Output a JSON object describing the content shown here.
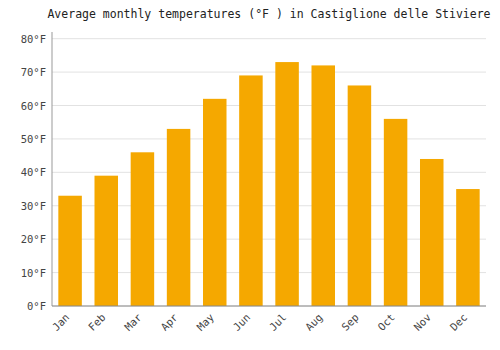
{
  "chart_data": {
    "type": "bar",
    "title": "Average monthly temperatures (°F ) in Castiglione delle Stiviere",
    "categories": [
      "Jan",
      "Feb",
      "Mar",
      "Apr",
      "May",
      "Jun",
      "Jul",
      "Aug",
      "Sep",
      "Oct",
      "Nov",
      "Dec"
    ],
    "values": [
      33,
      39,
      46,
      53,
      62,
      69,
      73,
      72,
      66,
      56,
      44,
      35
    ],
    "color": "#F5A800",
    "ylim": [
      0,
      82
    ],
    "yticks": [
      {
        "value": 0,
        "label": "0°F"
      },
      {
        "value": 10,
        "label": "10°F"
      },
      {
        "value": 20,
        "label": "20°F"
      },
      {
        "value": 30,
        "label": "30°F"
      },
      {
        "value": 40,
        "label": "40°F"
      },
      {
        "value": 50,
        "label": "50°F"
      },
      {
        "value": 60,
        "label": "60°F"
      },
      {
        "value": 70,
        "label": "70°F"
      },
      {
        "value": 80,
        "label": "80°F"
      }
    ],
    "grid": true
  }
}
